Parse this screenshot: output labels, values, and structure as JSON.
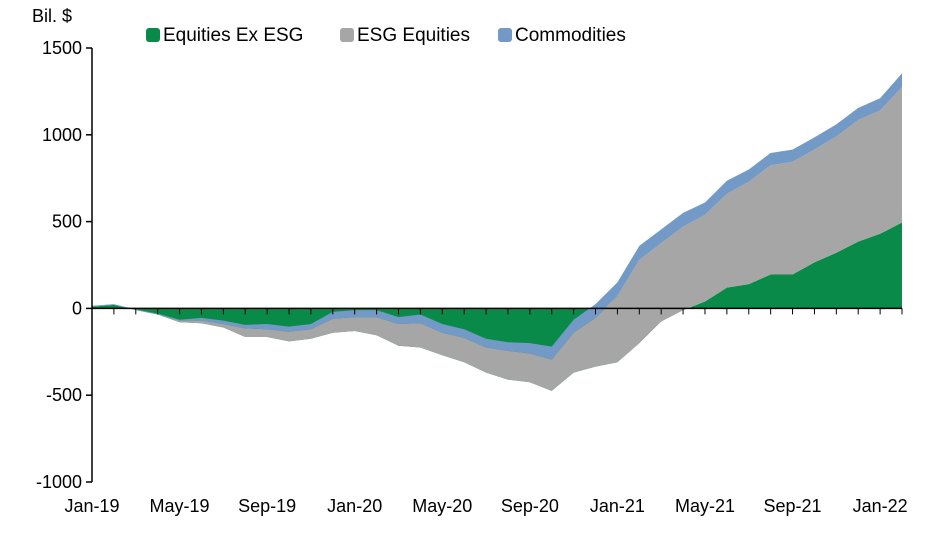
{
  "chart_data": {
    "type": "area",
    "stacked": true,
    "title": "",
    "xlabel": "",
    "ylabel": "Bil. $",
    "ylim": [
      -1000,
      1500
    ],
    "yticks": [
      -1000,
      -500,
      0,
      500,
      1000,
      1500
    ],
    "xtick_labels": [
      "Jan-19",
      "May-19",
      "Sep-19",
      "Jan-20",
      "May-20",
      "Sep-20",
      "Jan-21",
      "May-21",
      "Sep-21",
      "Jan-22"
    ],
    "legend_position": "top",
    "grid": false,
    "x": [
      "Jan-19",
      "Feb-19",
      "Mar-19",
      "Apr-19",
      "May-19",
      "Jun-19",
      "Jul-19",
      "Aug-19",
      "Sep-19",
      "Oct-19",
      "Nov-19",
      "Dec-19",
      "Jan-20",
      "Feb-20",
      "Mar-20",
      "Apr-20",
      "May-20",
      "Jun-20",
      "Jul-20",
      "Aug-20",
      "Sep-20",
      "Oct-20",
      "Nov-20",
      "Dec-20",
      "Jan-21",
      "Feb-21",
      "Mar-21",
      "Apr-21",
      "May-21",
      "Jun-21",
      "Jul-21",
      "Aug-21",
      "Sep-21",
      "Oct-21",
      "Nov-21",
      "Dec-21",
      "Jan-22",
      "Feb-22"
    ],
    "series": [
      {
        "name": "Equities Ex ESG",
        "color": "#0a8a48",
        "values": [
          10,
          20,
          -10,
          -35,
          -80,
          -85,
          -110,
          -165,
          -165,
          -190,
          -175,
          -140,
          -130,
          -155,
          -215,
          -225,
          -270,
          -310,
          -370,
          -410,
          -425,
          -475,
          -370,
          -335,
          -310,
          -200,
          -75,
          -10,
          40,
          120,
          140,
          195,
          195,
          265,
          320,
          385,
          430,
          495
        ]
      },
      {
        "name": "ESG Equities",
        "color": "#a6a6a6",
        "values": [
          0,
          0,
          0,
          0,
          10,
          15,
          20,
          50,
          45,
          55,
          55,
          80,
          80,
          105,
          125,
          140,
          130,
          140,
          145,
          165,
          165,
          180,
          230,
          280,
          380,
          480,
          450,
          480,
          500,
          540,
          590,
          630,
          650,
          650,
          670,
          700,
          710,
          780
        ]
      },
      {
        "name": "Commodities",
        "color": "#7399c6",
        "values": [
          5,
          5,
          5,
          5,
          5,
          15,
          20,
          20,
          30,
          30,
          30,
          40,
          40,
          40,
          40,
          50,
          50,
          50,
          50,
          50,
          60,
          75,
          75,
          80,
          80,
          80,
          80,
          80,
          70,
          75,
          70,
          70,
          70,
          70,
          70,
          70,
          70,
          80
        ]
      }
    ]
  }
}
